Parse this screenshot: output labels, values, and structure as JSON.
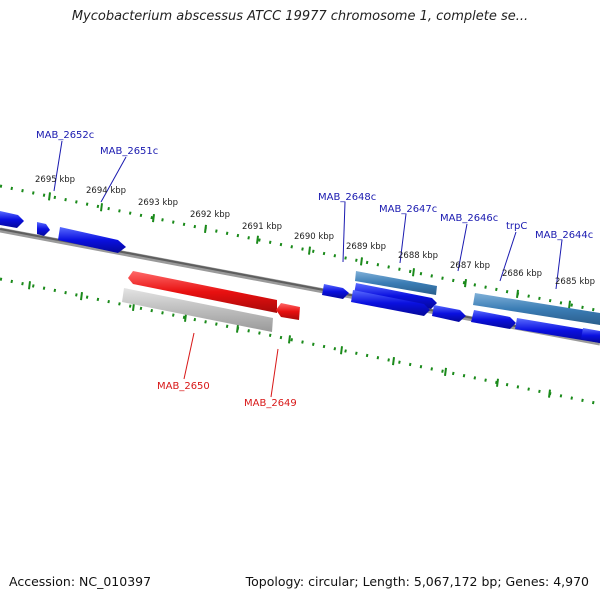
{
  "title": "Mycobacterium abscessus ATCC 19977 chromosome 1, complete se...",
  "footer": {
    "accession": "Accession: NC_010397",
    "summary": "Topology: circular; Length: 5,067,172 bp; Genes: 4,970"
  },
  "colors": {
    "forward_gene": "#0a10e0",
    "forward_highlight": "#3b7db5",
    "reverse_gene": "#e81010",
    "reverse_highlight": "#b8b8b8",
    "backbone": "#707070",
    "ticks": "#1a8a1a",
    "forward_label": "#1a1ab0",
    "reverse_label": "#d81818",
    "scale_label": "#222222"
  },
  "scale_labels": [
    "2695 kbp",
    "2694 kbp",
    "2693 kbp",
    "2692 kbp",
    "2691 kbp",
    "2690 kbp",
    "2689 kbp",
    "2688 kbp",
    "2687 kbp",
    "2686 kbp",
    "2685 kbp"
  ],
  "forward_gene_labels": [
    "MAB_2652c",
    "MAB_2651c",
    "MAB_2648c",
    "MAB_2647c",
    "MAB_2646c",
    "trpC",
    "MAB_2644c"
  ],
  "reverse_gene_labels": [
    "MAB_2650",
    "MAB_2649"
  ]
}
